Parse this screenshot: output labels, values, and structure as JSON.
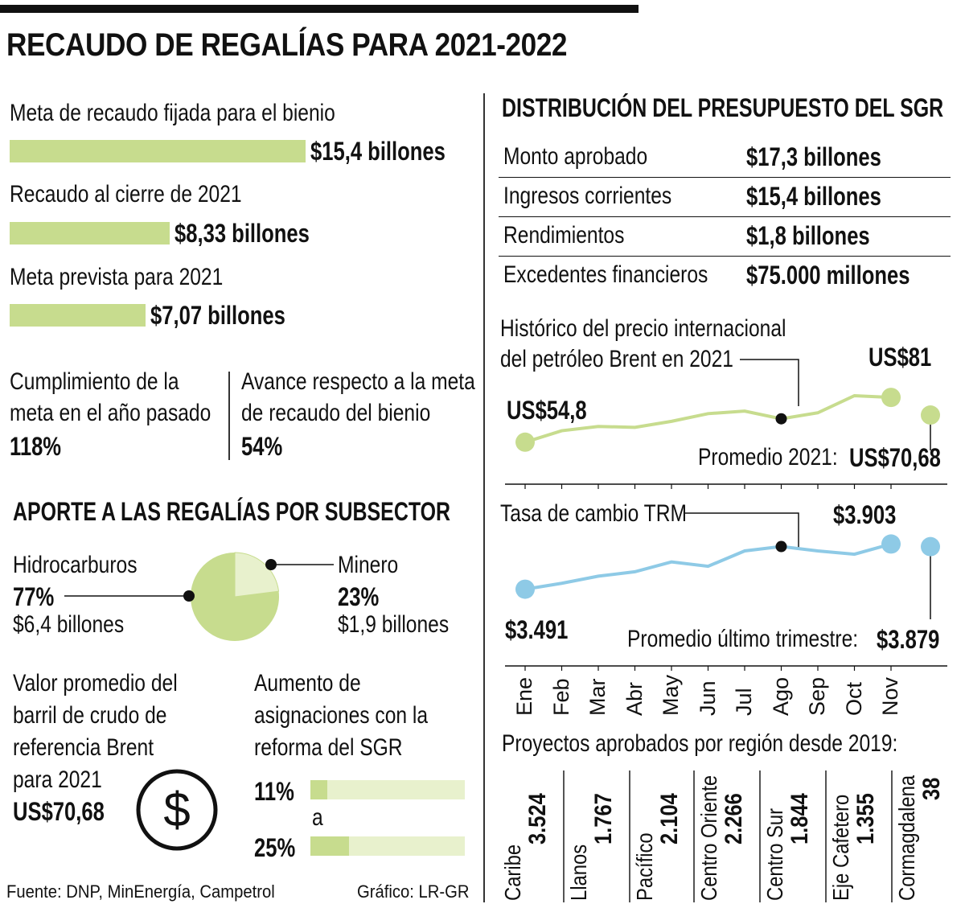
{
  "title": "RECAUDO DE REGALÍAS PARA 2021-2022",
  "goals": [
    {
      "label": "Meta de recaudo fijada para el bienio",
      "value": 15.4,
      "display": "$15,4 billones"
    },
    {
      "label": "Recaudo al cierre de 2021",
      "value": 8.33,
      "display": "$8,33 billones"
    },
    {
      "label": "Meta prevista para 2021",
      "value": 7.07,
      "display": "$7,07 billones"
    }
  ],
  "compliance": {
    "label1": "Cumplimiento de la",
    "label2": "meta en el año pasado",
    "value": "118%"
  },
  "progress": {
    "label1": "Avance respecto a la meta",
    "label2": "de recaudo del bienio",
    "value": "54%"
  },
  "subsector": {
    "title": "APORTE A LAS REGALÍAS POR SUBSECTOR",
    "hidro": {
      "name": "Hidrocarburos",
      "pct": "77%",
      "amount": "$6,4 billones",
      "share": 77
    },
    "minero": {
      "name": "Minero",
      "pct": "23%",
      "amount": "$1,9 billones",
      "share": 23
    }
  },
  "brent_avg": {
    "l1": "Valor promedio del",
    "l2": "barril de crudo de",
    "l3": "referencia Brent",
    "l4": "para 2021",
    "value": "US$70,68",
    "icon": "dollar-coin-icon"
  },
  "increase": {
    "l1": "Aumento de",
    "l2": "asignaciones con la",
    "l3": "reforma del SGR",
    "from": "11%",
    "mid": "a",
    "to": "25%",
    "from_val": 11,
    "to_val": 25
  },
  "source": "Fuente: DNP, MinEnergía, Campetrol",
  "credit": "Gráfico: LR-GR",
  "budget": {
    "title": "DISTRIBUCIÓN DEL PRESUPUESTO DEL SGR",
    "rows": [
      {
        "label": "Monto aprobado",
        "value": "$17,3 billones"
      },
      {
        "label": "Ingresos corrientes",
        "value": "$15,4 billones"
      },
      {
        "label": "Rendimientos",
        "value": "$1,8 billones"
      },
      {
        "label": "Excedentes financieros",
        "value": "$75.000 millones"
      }
    ]
  },
  "chart_data": [
    {
      "type": "line",
      "title": "Histórico del precio internacional del petróleo Brent en 2021",
      "title_l1": "Histórico del precio internacional",
      "title_l2": "del petróleo Brent en 2021",
      "color": "#c7dc8e",
      "x": [
        "Ene",
        "Feb",
        "Mar",
        "Abr",
        "May",
        "Jun",
        "Jul",
        "Ago",
        "Sep",
        "Oct",
        "Nov"
      ],
      "values": [
        54.8,
        61.5,
        64,
        63.5,
        67,
        71.5,
        73,
        68.5,
        72,
        82,
        81
      ],
      "ylim": [
        50,
        90
      ],
      "start_label": "US$54,8",
      "max_label": "US$81",
      "avg_label": "Promedio 2021:",
      "avg_value": "US$70,68",
      "avg": 70.68
    },
    {
      "type": "line",
      "title": "Tasa de cambio TRM",
      "color": "#8ecae6",
      "x": [
        "Ene",
        "Feb",
        "Mar",
        "Abr",
        "May",
        "Jun",
        "Jul",
        "Ago",
        "Sep",
        "Oct",
        "Nov"
      ],
      "values": [
        3491,
        3545,
        3610,
        3650,
        3740,
        3700,
        3840,
        3880,
        3840,
        3810,
        3903
      ],
      "ylim": [
        3400,
        3950
      ],
      "start_label": "$3.491",
      "max_label": "$3.903",
      "avg_label": "Promedio último trimestre:",
      "avg_value": "$3.879",
      "avg": 3879
    }
  ],
  "months": [
    "Ene",
    "Feb",
    "Mar",
    "Abr",
    "May",
    "Jun",
    "Jul",
    "Ago",
    "Sep",
    "Oct",
    "Nov"
  ],
  "regions": {
    "title": "Proyectos aprobados por región desde 2019:",
    "items": [
      {
        "name": "Caribe",
        "value": "3.524"
      },
      {
        "name": "Llanos",
        "value": "1.767"
      },
      {
        "name": "Pacífico",
        "value": "2.104"
      },
      {
        "name": "Centro Oriente",
        "value": "2.266"
      },
      {
        "name": "Centro Sur",
        "value": "1.844"
      },
      {
        "name": "Eje Cafetero",
        "value": "1.355"
      },
      {
        "name": "Cormagdalena",
        "value": "38"
      }
    ]
  }
}
